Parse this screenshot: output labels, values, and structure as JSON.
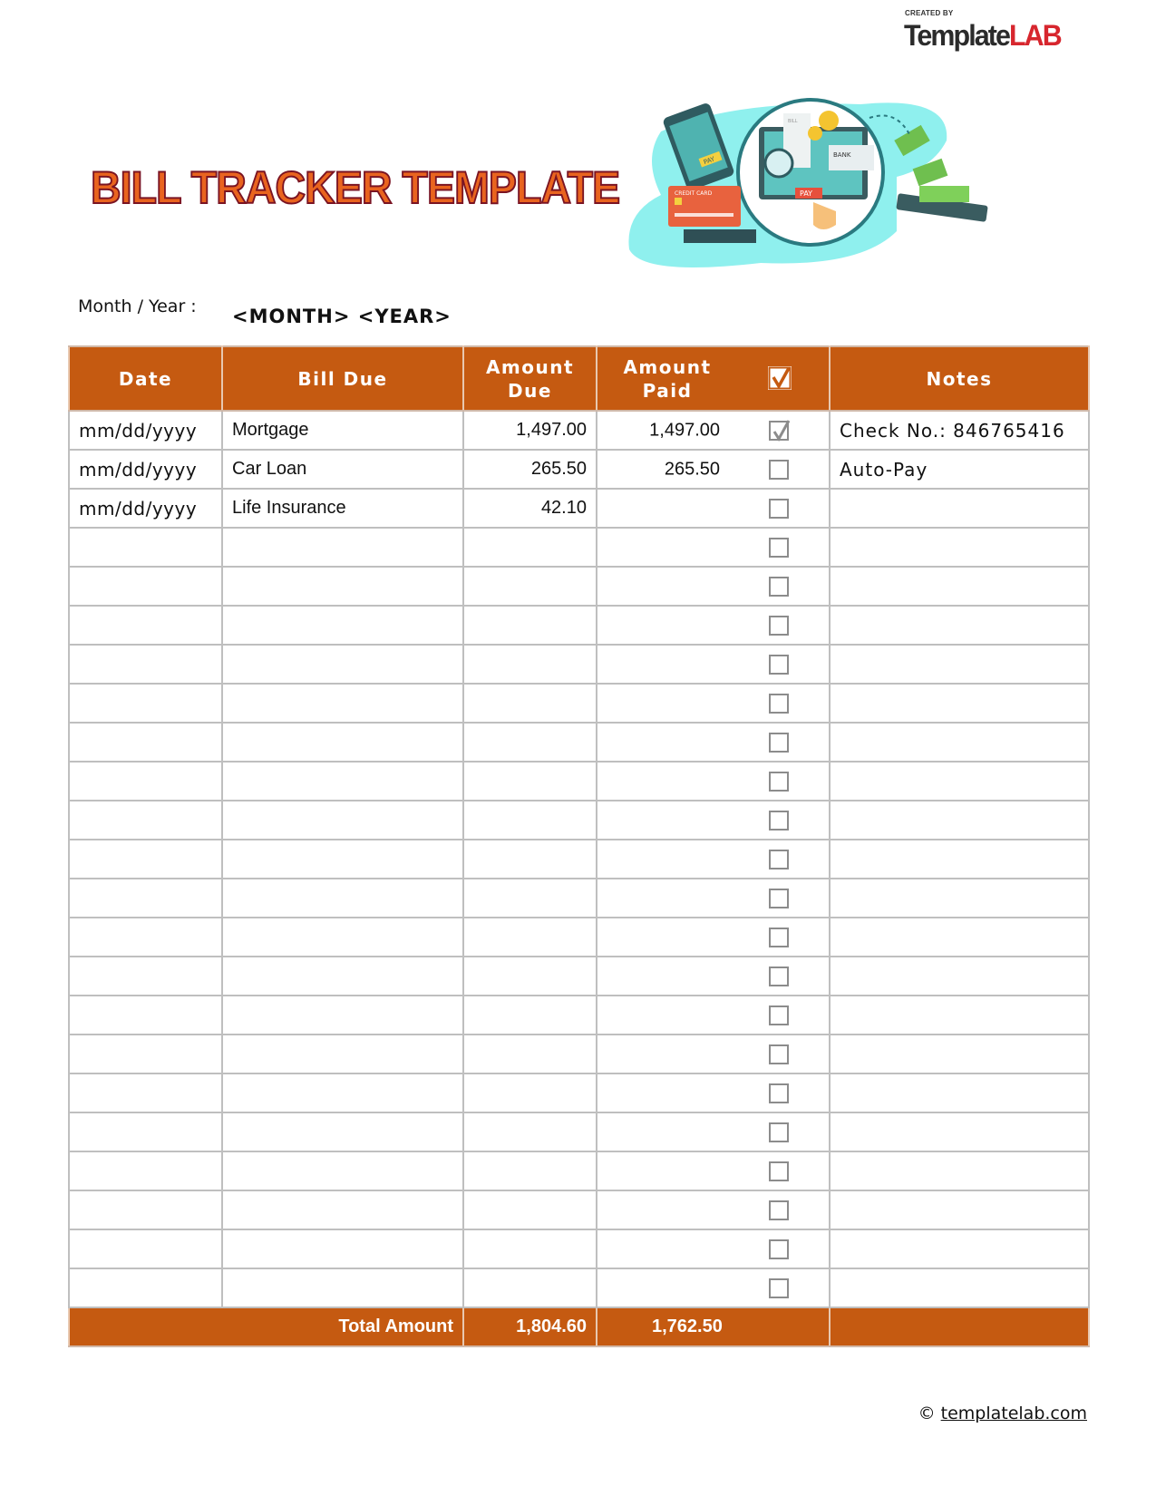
{
  "logo": {
    "created_by": "CREATED BY",
    "brand_part1": "Template",
    "brand_part2": "LAB"
  },
  "title": "BILL TRACKER TEMPLATE",
  "hero_image": {
    "labels": [
      "CREDIT CARD",
      "PAY",
      "BANK",
      "BILL",
      "PAY"
    ]
  },
  "period": {
    "label": "Month  / Year :",
    "value": "<MONTH> <YEAR>"
  },
  "table": {
    "headers": {
      "date": "Date",
      "bill": "Bill Due",
      "amount_due": "Amount Due",
      "amount_paid": "Amount Paid",
      "notes": "Notes"
    },
    "rows": [
      {
        "date": "mm/dd/yyyy",
        "bill": "Mortgage",
        "due": "1,497.00",
        "paid": "1,497.00",
        "checked": true,
        "notes": "Check No.: 846765416"
      },
      {
        "date": "mm/dd/yyyy",
        "bill": "Car Loan",
        "due": "265.50",
        "paid": "265.50",
        "checked": false,
        "notes": "Auto-Pay"
      },
      {
        "date": "mm/dd/yyyy",
        "bill": "Life Insurance",
        "due": "42.10",
        "paid": "",
        "checked": false,
        "notes": ""
      },
      {
        "date": "",
        "bill": "",
        "due": "",
        "paid": "",
        "checked": false,
        "notes": ""
      },
      {
        "date": "",
        "bill": "",
        "due": "",
        "paid": "",
        "checked": false,
        "notes": ""
      },
      {
        "date": "",
        "bill": "",
        "due": "",
        "paid": "",
        "checked": false,
        "notes": ""
      },
      {
        "date": "",
        "bill": "",
        "due": "",
        "paid": "",
        "checked": false,
        "notes": ""
      },
      {
        "date": "",
        "bill": "",
        "due": "",
        "paid": "",
        "checked": false,
        "notes": ""
      },
      {
        "date": "",
        "bill": "",
        "due": "",
        "paid": "",
        "checked": false,
        "notes": ""
      },
      {
        "date": "",
        "bill": "",
        "due": "",
        "paid": "",
        "checked": false,
        "notes": ""
      },
      {
        "date": "",
        "bill": "",
        "due": "",
        "paid": "",
        "checked": false,
        "notes": ""
      },
      {
        "date": "",
        "bill": "",
        "due": "",
        "paid": "",
        "checked": false,
        "notes": ""
      },
      {
        "date": "",
        "bill": "",
        "due": "",
        "paid": "",
        "checked": false,
        "notes": ""
      },
      {
        "date": "",
        "bill": "",
        "due": "",
        "paid": "",
        "checked": false,
        "notes": ""
      },
      {
        "date": "",
        "bill": "",
        "due": "",
        "paid": "",
        "checked": false,
        "notes": ""
      },
      {
        "date": "",
        "bill": "",
        "due": "",
        "paid": "",
        "checked": false,
        "notes": ""
      },
      {
        "date": "",
        "bill": "",
        "due": "",
        "paid": "",
        "checked": false,
        "notes": ""
      },
      {
        "date": "",
        "bill": "",
        "due": "",
        "paid": "",
        "checked": false,
        "notes": ""
      },
      {
        "date": "",
        "bill": "",
        "due": "",
        "paid": "",
        "checked": false,
        "notes": ""
      },
      {
        "date": "",
        "bill": "",
        "due": "",
        "paid": "",
        "checked": false,
        "notes": ""
      },
      {
        "date": "",
        "bill": "",
        "due": "",
        "paid": "",
        "checked": false,
        "notes": ""
      },
      {
        "date": "",
        "bill": "",
        "due": "",
        "paid": "",
        "checked": false,
        "notes": ""
      },
      {
        "date": "",
        "bill": "",
        "due": "",
        "paid": "",
        "checked": false,
        "notes": ""
      }
    ],
    "total": {
      "label": "Total Amount",
      "due": "1,804.60",
      "paid": "1,762.50"
    }
  },
  "colors": {
    "header_bg": "#c55a11",
    "grid": "#bfbfbf",
    "title_fill": "#e9641f",
    "title_outline": "#7a1423"
  },
  "footer": {
    "copyright": "©",
    "link": "templatelab.com"
  }
}
